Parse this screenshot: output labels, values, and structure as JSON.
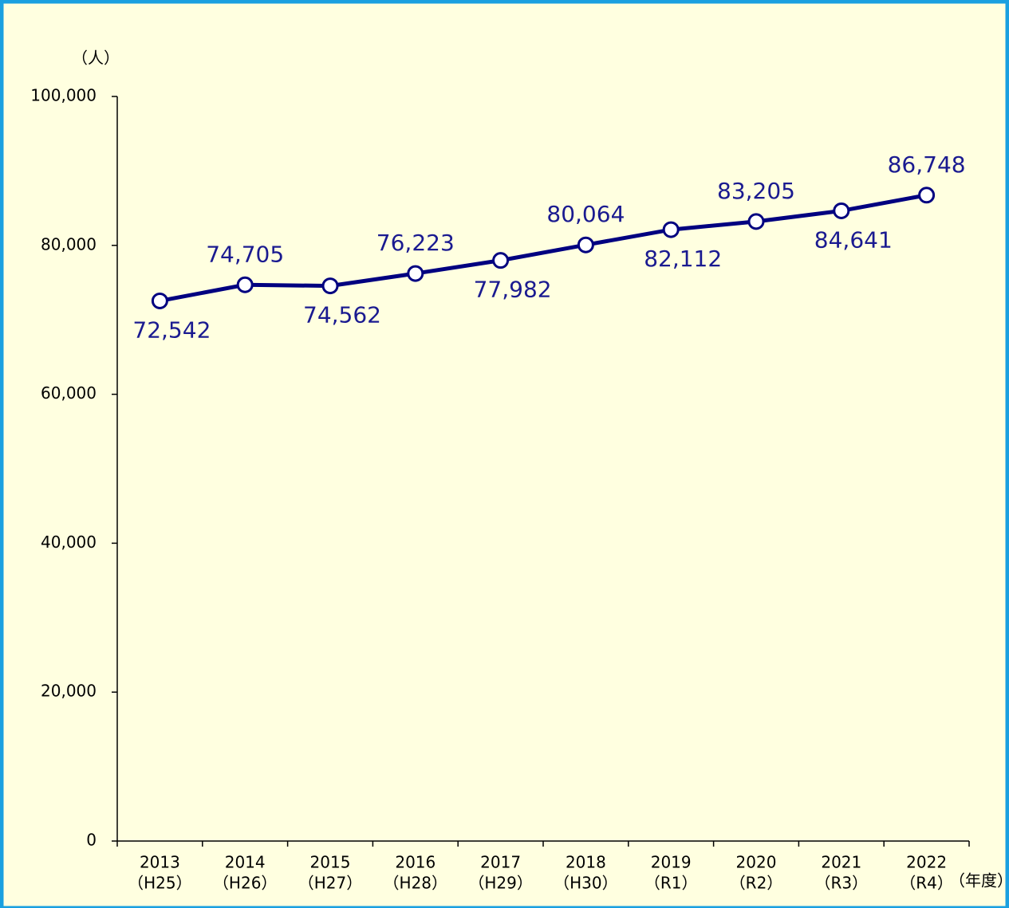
{
  "chart_data": {
    "type": "line",
    "y_label": "（人）",
    "x_label": "（年度）",
    "categories": [
      [
        "2013",
        "（H25）"
      ],
      [
        "2014",
        "（H26）"
      ],
      [
        "2015",
        "（H27）"
      ],
      [
        "2016",
        "（H28）"
      ],
      [
        "2017",
        "（H29）"
      ],
      [
        "2018",
        "（H30）"
      ],
      [
        "2019",
        "（R1）"
      ],
      [
        "2020",
        "（R2）"
      ],
      [
        "2021",
        "（R3）"
      ],
      [
        "2022",
        "（R4）"
      ]
    ],
    "values": [
      72542,
      74705,
      74562,
      76223,
      77982,
      80064,
      82112,
      83205,
      84641,
      86748
    ],
    "value_labels": [
      "72,542",
      "74,705",
      "74,562",
      "76,223",
      "77,982",
      "80,064",
      "82,112",
      "83,205",
      "84,641",
      "86,748"
    ],
    "color": "#000080",
    "label_color": "#1a1a90",
    "ylim": [
      0,
      100000
    ],
    "yticks": [
      0,
      {
        "value": 20000,
        "label": "20,000"
      },
      {
        "value": 40000,
        "label": "40,000"
      },
      {
        "value": 60000,
        "label": "60,000"
      },
      {
        "value": 80000,
        "label": "80,000"
      },
      {
        "value": 100000,
        "label": "100,000"
      }
    ],
    "grid": false
  }
}
